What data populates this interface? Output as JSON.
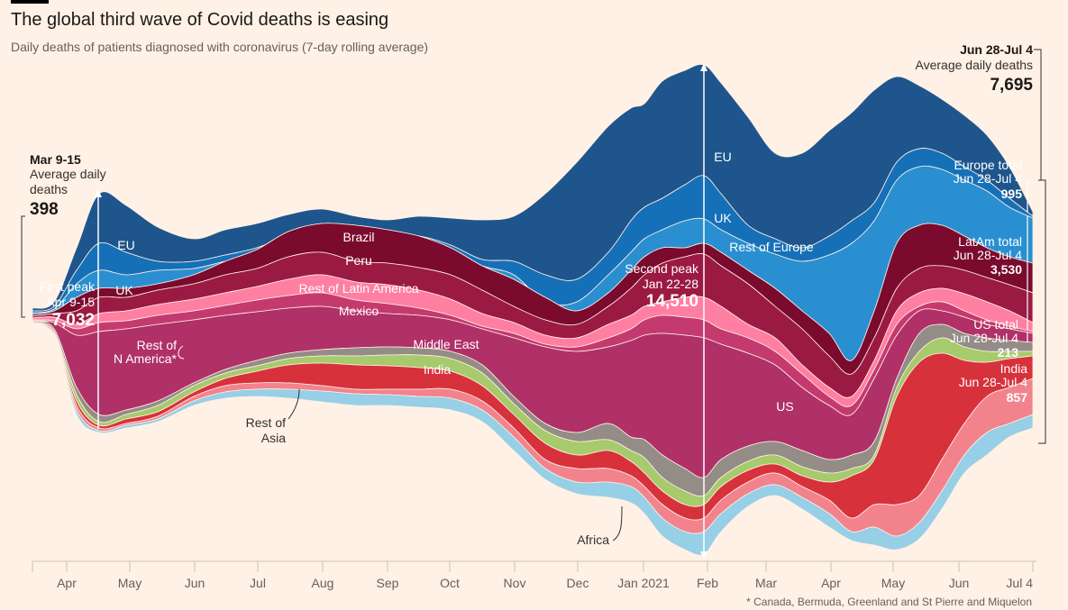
{
  "header": {
    "title": "The global third wave of Covid deaths is easing",
    "subtitle": "Daily deaths of patients diagnosed with coronavirus (7-day rolling average)"
  },
  "footnote": "* Canada, Bermuda, Greenland and St Pierre and Miquelon",
  "chart_data": {
    "type": "area",
    "stacking": "streamgraph",
    "x_labels": [
      "Apr",
      "May",
      "Jun",
      "Jul",
      "Aug",
      "Sep",
      "Oct",
      "Nov",
      "Dec",
      "Jan 2021",
      "Feb",
      "Mar",
      "Apr",
      "May",
      "Jun",
      "Jul 4"
    ],
    "series_order_bottom_to_top": [
      "Africa",
      "Rest of Asia",
      "India",
      "Middle East",
      "US",
      "Rest of N America*",
      "Mexico",
      "Rest of Latin America",
      "Peru",
      "Brazil",
      "Rest of Europe",
      "UK",
      "EU"
    ],
    "colors": {
      "EU": "#1e558c",
      "UK": "#2a8fd0",
      "Rest of Europe": "#1670b8",
      "Brazil": "#7a0a2e",
      "Peru": "#9b1a44",
      "Rest of Latin America": "#ff7fa3",
      "Mexico": "#c43a6f",
      "Rest of N America*": "#b03068",
      "US": "#948c86",
      "Middle East": "#a6ca6c",
      "India": "#d7323c",
      "Rest of Asia": "#f2838c",
      "Africa": "#96cfe6",
      "background": "#fff1e5"
    },
    "series_labels": [
      {
        "text": "EU"
      },
      {
        "text": "UK"
      },
      {
        "text": "Brazil"
      },
      {
        "text": "Peru"
      },
      {
        "text": "Rest of Latin America"
      },
      {
        "text": "Mexico"
      },
      {
        "text": "Rest of"
      },
      {
        "text": "N America*"
      },
      {
        "text": "Middle East"
      },
      {
        "text": "India"
      },
      {
        "text": "Rest of"
      },
      {
        "text": "Asia"
      },
      {
        "text": "Africa"
      },
      {
        "text": "EU"
      },
      {
        "text": "UK"
      },
      {
        "text": "Rest of Europe"
      },
      {
        "text": "US"
      }
    ],
    "annotations": {
      "first_period": {
        "label": "Mar 9-15",
        "sub1": "Average daily",
        "sub2": "deaths",
        "value": "398"
      },
      "first_peak": {
        "label": "First peak",
        "date": "Apr 9-15",
        "value": "7,032"
      },
      "second_peak": {
        "label": "Second peak",
        "date": "Jan 22-28",
        "value": "14,510"
      },
      "latest": {
        "label": "Jun 28-Jul 4",
        "sub": "Average daily deaths",
        "value": "7,695"
      },
      "europe_total": {
        "label": "Europe total",
        "date": "Jun 28-Jul 4",
        "value": "995"
      },
      "latam_total": {
        "label": "LatAm total",
        "date": "Jun 28-Jul 4",
        "value": "3,530"
      },
      "us_total": {
        "label": "US total",
        "date": "Jun 28-Jul 4",
        "value": "213"
      },
      "india": {
        "label": "India",
        "date": "Jun 28-Jul 4",
        "value": "857"
      }
    }
  }
}
